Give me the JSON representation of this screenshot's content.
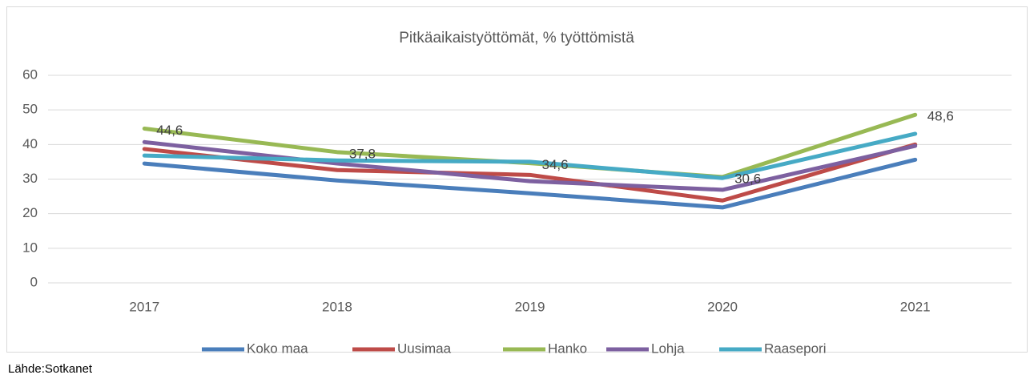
{
  "chart_data": {
    "type": "line",
    "title": "Pitkäaikaistyöttömät, % työttömistä",
    "categories": [
      "2017",
      "2018",
      "2019",
      "2020",
      "2021"
    ],
    "series": [
      {
        "name": "Koko maa",
        "color": "#4a7ebb",
        "values": [
          34.5,
          29.6,
          25.9,
          21.8,
          35.6
        ]
      },
      {
        "name": "Uusimaa",
        "color": "#be4b48",
        "values": [
          38.7,
          32.6,
          31.2,
          23.8,
          40.0
        ]
      },
      {
        "name": "Hanko",
        "color": "#98b954",
        "values": [
          44.6,
          37.8,
          34.6,
          30.6,
          48.6
        ],
        "value_labels": [
          "44,6",
          "37,8",
          "34,6",
          "30,6",
          "48,6"
        ]
      },
      {
        "name": "Lohja",
        "color": "#7d60a0",
        "values": [
          40.7,
          34.5,
          29.4,
          26.9,
          39.6
        ]
      },
      {
        "name": "Raasepori",
        "color": "#46aac5",
        "values": [
          36.8,
          35.4,
          35.0,
          30.3,
          43.1
        ]
      }
    ],
    "ylim": [
      0,
      60
    ],
    "yticks": [
      0,
      10,
      20,
      30,
      40,
      50,
      60
    ],
    "grid": true,
    "legend": "bottom",
    "source": "Lähde:Sotkanet"
  }
}
